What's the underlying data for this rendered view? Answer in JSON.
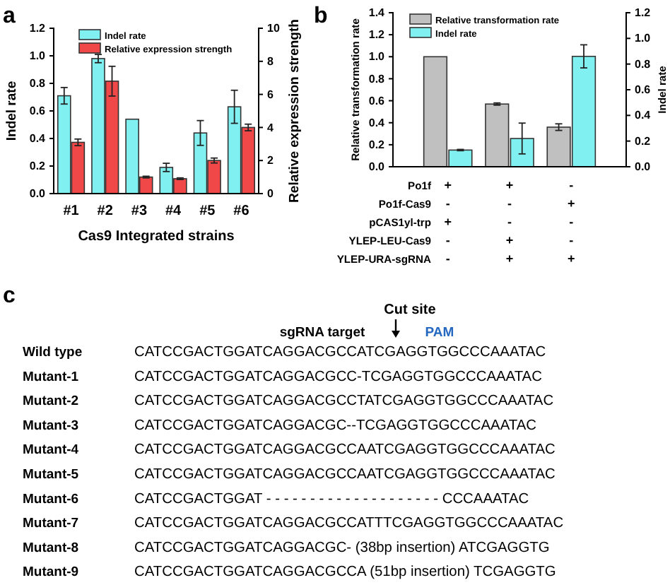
{
  "chart_data": [
    {
      "type": "bar",
      "title": "a",
      "xlabel": "Cas9 Integrated strains",
      "ylabel": "Indel rate",
      "y2label": "Relative expression strength",
      "categories": [
        "#1",
        "#2",
        "#3",
        "#4",
        "#5",
        "#6"
      ],
      "series": [
        {
          "name": "Indel rate",
          "color": "#80f0f0",
          "values": [
            0.71,
            0.98,
            0.54,
            0.19,
            0.44,
            0.63
          ],
          "errors": [
            0.06,
            0.03,
            null,
            0.03,
            0.09,
            0.12
          ]
        },
        {
          "name": "Relative expression strength",
          "color": "#f04848",
          "axis": "y2",
          "values": [
            3.1,
            6.8,
            1.0,
            0.9,
            2.0,
            4.0
          ],
          "errors": [
            0.2,
            0.9,
            0.05,
            0.05,
            0.15,
            0.2
          ]
        }
      ],
      "ylim": [
        0,
        1.2
      ],
      "yticks": [
        {
          "value": 0,
          "label": "0.0"
        },
        {
          "value": 0.2,
          "label": "0.2"
        },
        {
          "value": 0.4,
          "label": "0.4"
        },
        {
          "value": 0.6,
          "label": "0.6"
        },
        {
          "value": 0.8,
          "label": "0.8"
        },
        {
          "value": 1,
          "label": "1.0"
        },
        {
          "value": 1.2,
          "label": "1.2"
        }
      ],
      "y2lim": [
        0,
        10
      ],
      "y2ticks": [
        0,
        2,
        4,
        6,
        8,
        10
      ],
      "legend": "top"
    },
    {
      "type": "bar",
      "title": "b",
      "ylabel": "Relative transformation rate",
      "y2label": "Indel rate",
      "categories": [
        null,
        null,
        null
      ],
      "series": [
        {
          "name": "Relative transformation rate",
          "color": "#c0c0c0",
          "values": [
            1.0,
            0.57,
            0.36
          ],
          "errors": [
            null,
            0.01,
            0.03
          ]
        },
        {
          "name": "Indel rate",
          "color": "#80f0f0",
          "axis": "y2",
          "values": [
            0.13,
            0.22,
            0.86
          ],
          "errors": [
            0.005,
            0.12,
            0.09
          ]
        }
      ],
      "ylim": [
        0,
        1.4
      ],
      "yticks": [
        {
          "value": 0,
          "label": "0.0"
        },
        {
          "value": 0.2,
          "label": "0.2"
        },
        {
          "value": 0.4,
          "label": "0.4"
        },
        {
          "value": 0.6,
          "label": "0.6"
        },
        {
          "value": 0.8,
          "label": "0.8"
        },
        {
          "value": 1,
          "label": "1.0"
        },
        {
          "value": 1.2,
          "label": "1.2"
        },
        {
          "value": 1.4,
          "label": "1.4"
        }
      ],
      "y2lim": [
        0,
        1.2
      ],
      "y2ticks": [
        {
          "value": 0,
          "label": "0.0"
        },
        {
          "value": 0.2,
          "label": "0.2"
        },
        {
          "value": 0.4,
          "label": "0.4"
        },
        {
          "value": 0.6,
          "label": "0.6"
        },
        {
          "value": 0.8,
          "label": "0.8"
        },
        {
          "value": 1,
          "label": "1.0"
        },
        {
          "value": 1.2,
          "label": "1.2"
        }
      ],
      "legend": "top",
      "annotations": [
        "Po1f",
        "+",
        "+",
        "-",
        "Po1f-Cas9",
        "-",
        "-",
        "+",
        "pCAS1yl-trp",
        "+",
        "-",
        "-",
        "YLEP-LEU-Cas9",
        "-",
        "+",
        "-",
        "YLEP-URA-sgRNA",
        "-",
        "+",
        "+"
      ]
    },
    {
      "type": "other",
      "title": "c",
      "annotations": [
        "Cut site",
        "sgRNA target",
        "PAM",
        "Wild type",
        "CATCCGACTGGATCAGGACGCCATCGAGGTGGCCCAAATAC",
        "Mutant-1",
        "CATCCGACTGGATCAGGACGCC-TCGAGGTGGCCCAAATAC",
        "Mutant-2",
        "CATCCGACTGGATCAGGACGCCTATCGAGGTGGCCCAAATAC",
        "Mutant-3",
        "CATCCGACTGGATCAGGACGC--TCGAGGTGGCCCAAATAC",
        "Mutant-4",
        "CATCCGACTGGATCAGGACGCCAATCGAGGTGGCCCAAATAC",
        "Mutant-5",
        "CATCCGACTGGATCAGGACGCCAATCGAGGTGGCCCAAATAC",
        "Mutant-6",
        "CATCCGACTGGAT - - - - - - - - - - - - - - - - - - - - CCCAAATAC",
        "Mutant-7",
        "CATCCGACTGGATCAGGACGCCATTTCGAGGTGGCCCAAATAC",
        "Mutant-8",
        "CATCCGACTGGATCAGGACGC- (38bp insertion) ATCGAGGTG",
        "Mutant-9",
        "CATCCGACTGGATCAGGACGCCA (51bp insertion) TCGAGGTG"
      ]
    }
  ]
}
